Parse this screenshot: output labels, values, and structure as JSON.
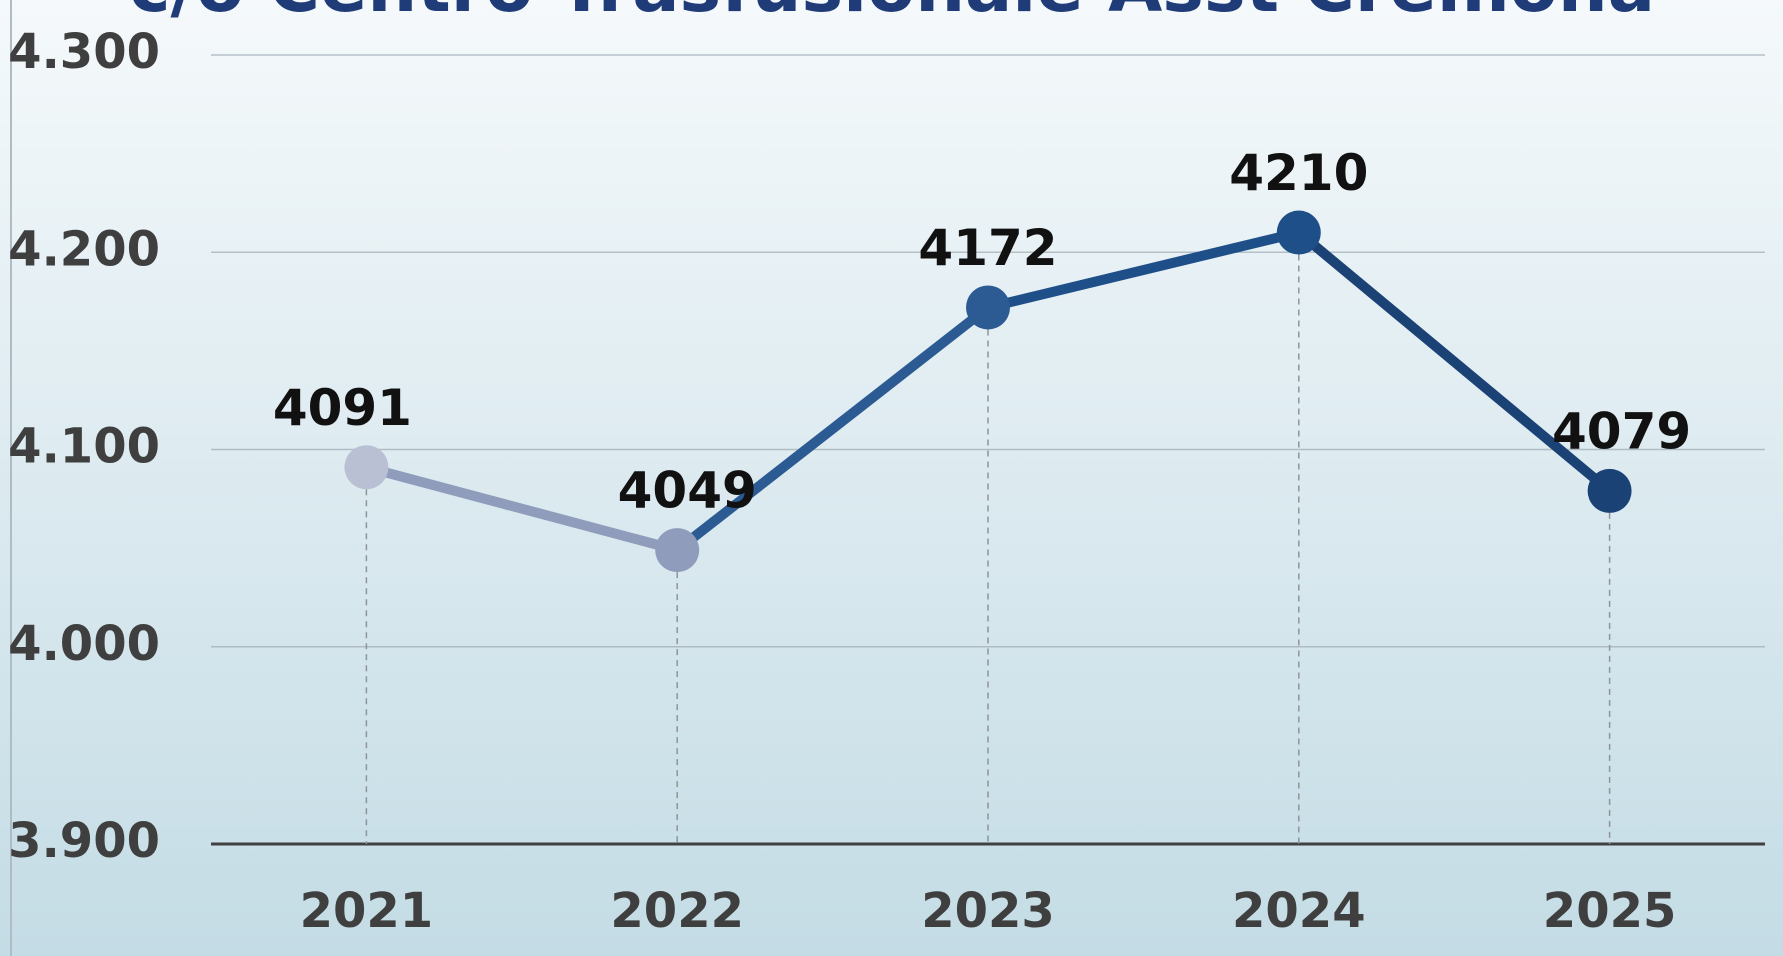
{
  "chart_data": {
    "type": "line",
    "title": "c/o Centro Trasfusionale Asst Cremona",
    "categories": [
      "2021",
      "2022",
      "2023",
      "2024",
      "2025"
    ],
    "series": [
      {
        "values": [
          4091,
          4049,
          4172,
          4210,
          4079
        ],
        "point_colors": [
          "#b9c0d4",
          "#8f9cbb",
          "#2b5b92",
          "#1f4f88",
          "#1b4275"
        ]
      }
    ],
    "ylim": [
      3900,
      4300
    ],
    "yticks": [
      {
        "value": 3900,
        "label": "3.900"
      },
      {
        "value": 4000,
        "label": "4.000"
      },
      {
        "value": 4100,
        "label": "4.100"
      },
      {
        "value": 4200,
        "label": "4.200"
      },
      {
        "value": 4300,
        "label": "4.300"
      }
    ],
    "grid": true,
    "drop_lines": true
  }
}
